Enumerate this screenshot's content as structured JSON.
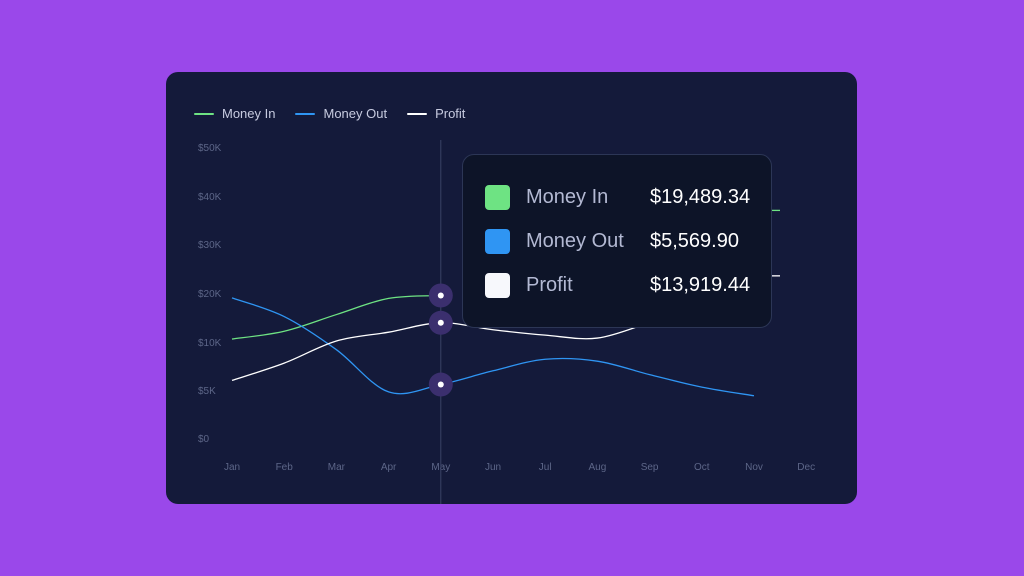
{
  "chart_data": {
    "type": "line",
    "categories": [
      "Jan",
      "Feb",
      "Mar",
      "Apr",
      "May",
      "Jun",
      "Jul",
      "Aug",
      "Sep",
      "Oct",
      "Nov",
      "Dec"
    ],
    "y_ticks": [
      "$0",
      "$5K",
      "$10K",
      "$20K",
      "$30K",
      "$40K",
      "$50K"
    ],
    "series": [
      {
        "name": "Money In",
        "color": "#6ee383",
        "values": [
          10600,
          12200,
          15600,
          18900,
          19489.34,
          null,
          null,
          null,
          null,
          null,
          null,
          null
        ]
      },
      {
        "name": "Money Out",
        "color": "#2f95f3",
        "values": [
          19000,
          15200,
          9200,
          4800,
          5569.9,
          7000,
          8200,
          8000,
          6600,
          5300,
          4400,
          null
        ]
      },
      {
        "name": "Profit",
        "color": "#ffffff",
        "values": [
          6000,
          7800,
          10200,
          12000,
          13919.44,
          12500,
          11400,
          10800,
          14000,
          null,
          null,
          null
        ]
      }
    ],
    "highlighted_category": "May",
    "title": "",
    "xlabel": "",
    "ylabel": "",
    "legend_position": "top-left",
    "grid": false
  },
  "tooltip": {
    "rows": [
      {
        "name": "Money In",
        "value": "$19,489.34",
        "color": "#6ee383"
      },
      {
        "name": "Money Out",
        "value": "$5,569.90",
        "color": "#2f95f3"
      },
      {
        "name": "Profit",
        "value": "$13,919.44",
        "color": "#f7f8fc"
      }
    ]
  }
}
